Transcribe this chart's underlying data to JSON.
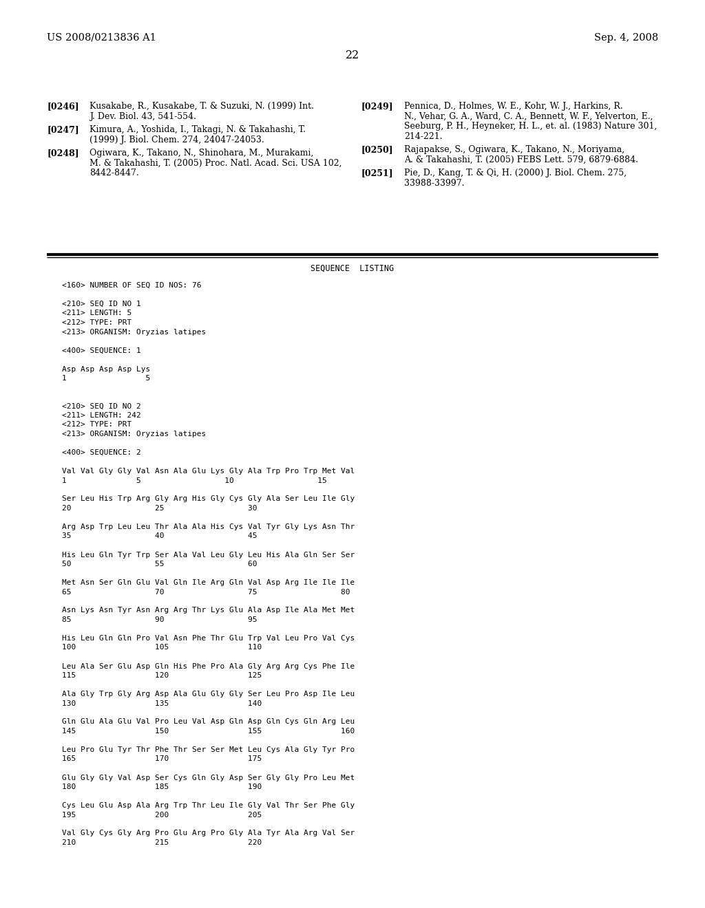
{
  "header_left": "US 2008/0213836 A1",
  "header_right": "Sep. 4, 2008",
  "page_number": "22",
  "background_color": "#ffffff",
  "text_color": "#000000",
  "references": [
    {
      "tag": "[0246]",
      "text": "Kusakabe, R., Kusakabe, T. & Suzuki, N. (1999) Int.\nJ. Dev. Biol. 43, 541-554."
    },
    {
      "tag": "[0247]",
      "text": "Kimura, A., Yoshida, I., Takagi, N. & Takahashi, T.\n(1999) J. Biol. Chem. 274, 24047-24053."
    },
    {
      "tag": "[0248]",
      "text": "Ogiwara, K., Takano, N., Shinohara, M., Murakami,\nM. & Takahashi, T. (2005) Proc. Natl. Acad. Sci. USA 102,\n8442-8447."
    },
    {
      "tag": "[0249]",
      "text": "Pennica, D., Holmes, W. E., Kohr, W. J., Harkins, R.\nN., Vehar, G. A., Ward, C. A., Bennett, W. F., Yelverton, E.,\nSeeburg, P. H., Heyneker, H. L., et. al. (1983) Nature 301,\n214-221."
    },
    {
      "tag": "[0250]",
      "text": "Rajapakse, S., Ogiwara, K., Takano, N., Moriyama,\nA. & Takahashi, T. (2005) FEBS Lett. 579, 6879-6884."
    },
    {
      "tag": "[0251]",
      "text": "Pie, D., Kang, T. & Qi, H. (2000) J. Biol. Chem. 275,\n33988-33997."
    }
  ],
  "sequence_listing_title": "SEQUENCE  LISTING",
  "seq_lines": [
    "<160> NUMBER OF SEQ ID NOS: 76",
    "BLANK",
    "<210> SEQ ID NO 1",
    "<211> LENGTH: 5",
    "<212> TYPE: PRT",
    "<213> ORGANISM: Oryzias latipes",
    "BLANK",
    "<400> SEQUENCE: 1",
    "BLANK",
    "Asp Asp Asp Asp Lys",
    "1                 5",
    "BLANK",
    "BLANK",
    "<210> SEQ ID NO 2",
    "<211> LENGTH: 242",
    "<212> TYPE: PRT",
    "<213> ORGANISM: Oryzias latipes",
    "BLANK",
    "<400> SEQUENCE: 2",
    "BLANK",
    "Val Val Gly Gly Val Asn Ala Glu Lys Gly Ala Trp Pro Trp Met Val",
    "1               5                  10                  15",
    "BLANK",
    "Ser Leu His Trp Arg Gly Arg His Gly Cys Gly Ala Ser Leu Ile Gly",
    "20                  25                  30",
    "BLANK",
    "Arg Asp Trp Leu Leu Thr Ala Ala His Cys Val Tyr Gly Lys Asn Thr",
    "35                  40                  45",
    "BLANK",
    "His Leu Gln Tyr Trp Ser Ala Val Leu Gly Leu His Ala Gln Ser Ser",
    "50                  55                  60",
    "BLANK",
    "Met Asn Ser Gln Glu Val Gln Ile Arg Gln Val Asp Arg Ile Ile Ile",
    "65                  70                  75                  80",
    "BLANK",
    "Asn Lys Asn Tyr Asn Arg Arg Thr Lys Glu Ala Asp Ile Ala Met Met",
    "85                  90                  95",
    "BLANK",
    "His Leu Gln Gln Pro Val Asn Phe Thr Glu Trp Val Leu Pro Val Cys",
    "100                 105                 110",
    "BLANK",
    "Leu Ala Ser Glu Asp Gln His Phe Pro Ala Gly Arg Arg Cys Phe Ile",
    "115                 120                 125",
    "BLANK",
    "Ala Gly Trp Gly Arg Asp Ala Glu Gly Gly Ser Leu Pro Asp Ile Leu",
    "130                 135                 140",
    "BLANK",
    "Gln Glu Ala Glu Val Pro Leu Val Asp Gln Asp Gln Cys Gln Arg Leu",
    "145                 150                 155                 160",
    "BLANK",
    "Leu Pro Glu Tyr Thr Phe Thr Ser Ser Met Leu Cys Ala Gly Tyr Pro",
    "165                 170                 175",
    "BLANK",
    "Glu Gly Gly Val Asp Ser Cys Gln Gly Asp Ser Gly Gly Pro Leu Met",
    "180                 185                 190",
    "BLANK",
    "Cys Leu Glu Asp Ala Arg Trp Thr Leu Ile Gly Val Thr Ser Phe Gly",
    "195                 200                 205",
    "BLANK",
    "Val Gly Cys Gly Arg Pro Glu Arg Pro Gly Ala Tyr Ala Arg Val Ser",
    "210                 215                 220"
  ]
}
